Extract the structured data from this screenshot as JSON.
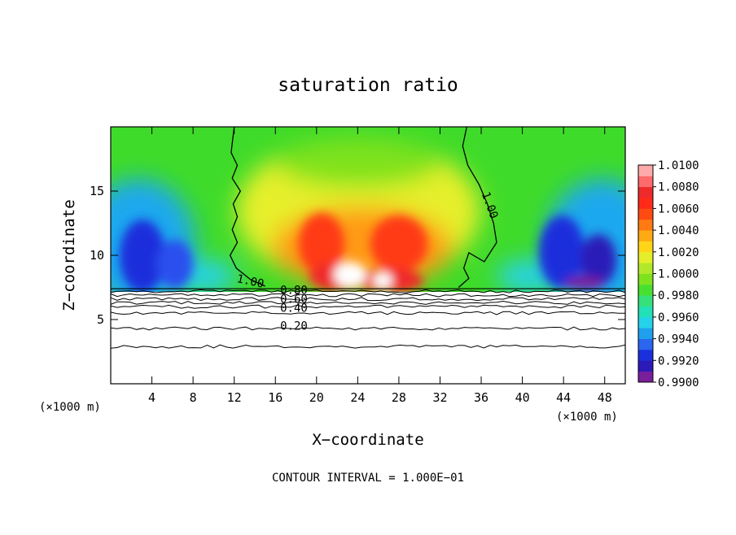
{
  "chart_data": {
    "type": "heatmap",
    "title": "saturation ratio",
    "xlabel": "X−coordinate",
    "ylabel": "Z−coordinate",
    "x_unit_left": "(×1000 m)",
    "x_unit_right": "(×1000 m)",
    "footer": "CONTOUR INTERVAL = 1.000E−01",
    "xlim": [
      0,
      50
    ],
    "ylim": [
      0,
      20
    ],
    "x_ticks": [
      4,
      8,
      12,
      16,
      20,
      24,
      28,
      32,
      36,
      40,
      44,
      48
    ],
    "y_ticks": [
      5,
      10,
      15
    ],
    "colorbar": {
      "levels": [
        "1.0100",
        "1.0080",
        "1.0060",
        "1.0040",
        "1.0020",
        "1.0000",
        "0.9980",
        "0.9960",
        "0.9940",
        "0.9920",
        "0.9900"
      ],
      "colors": [
        "#7a1f9c",
        "#2c1ab8",
        "#1c2fdc",
        "#2a66ee",
        "#1f9fee",
        "#25d2ea",
        "#22e0b8",
        "#36e07a",
        "#48e030",
        "#7fe21e",
        "#b2e82a",
        "#e4ee2a",
        "#ffd51a",
        "#ffaa14",
        "#ff7a12",
        "#ff4a12",
        "#ff2a18",
        "#ee2a2a",
        "#ff6a6a",
        "#ffaaaa"
      ]
    },
    "contour_labels": [
      {
        "text": "1.00",
        "x": 13.5,
        "y": 7.7
      },
      {
        "text": "1.00",
        "x": 36.5,
        "y": 13.8
      },
      {
        "text": "0.80",
        "x": 17.8,
        "y": 7.0
      },
      {
        "text": "0.60",
        "x": 17.8,
        "y": 6.3
      },
      {
        "text": "0.40",
        "x": 17.8,
        "y": 5.6
      },
      {
        "text": "0.20",
        "x": 17.8,
        "y": 4.2
      }
    ],
    "lower_contours_z": [
      2.9,
      4.3,
      5.5,
      6.0,
      6.3,
      6.6,
      6.9,
      7.2
    ],
    "field_base_z": 7.4
  }
}
